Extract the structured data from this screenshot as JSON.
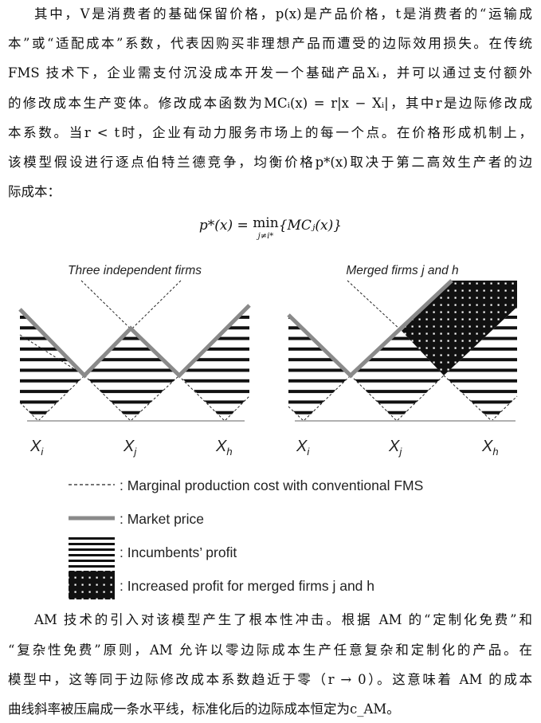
{
  "paragraph1": [
    "其中，V是消费者的基础保留价格，p(x)是产品价格，t是消费者的“运输成",
    "本”或“适配成本”系数，代表因购买非理想产品而遭受的边际效用损失。在传统",
    "FMS 技术下，企业需支付沉没成本开发一个基础产品Xᵢ，并可以通过支付额外",
    "的修改成本生产变体。修改成本函数为MCᵢ(x) = r|x − Xᵢ|，其中r是边际修改成",
    "本系数。当r < t时，企业有动力服务市场上的每一个点。在价格形成机制上，",
    "该模型假设进行逐点伯特兰德竞争，均衡价格p*(x)取决于第二高效生产者的边",
    "际成本："
  ],
  "formula": {
    "lhs": "p*(x) = ",
    "min": "min",
    "min_sub": "j≠i*",
    "rhs": "{MCⱼ(x)}"
  },
  "figure": {
    "left_title": "Three independent firms",
    "right_title": "Merged firms j and h",
    "firm_labels": [
      {
        "main": "X",
        "sub": "i"
      },
      {
        "main": "X",
        "sub": "j"
      },
      {
        "main": "X",
        "sub": "h"
      }
    ],
    "legend": [
      {
        "symbol": "dashed-line",
        "label": ": Marginal production cost with conventional FMS"
      },
      {
        "symbol": "gray-thick-line",
        "label": ": Market price"
      },
      {
        "symbol": "horizontal-stripes",
        "label": ": Incumbents’ profit"
      },
      {
        "symbol": "dotted-black",
        "label": ": Increased profit for merged firms j and h"
      }
    ],
    "colors": {
      "market_price": "#8a8a8a",
      "baseline": "#b0b0b0",
      "fill": "#111111"
    }
  },
  "paragraph2": [
    "AM 技术的引入对该模型产生了根本性冲击。根据 AM 的“定制化免费”和",
    "“复杂性免费”原则，AM 允许以零边际成本生产任意复杂和定制化的产品。在",
    "模型中，这等同于边际修改成本系数趋近于零（r → 0）。这意味着 AM 的成本",
    "曲线斜率被压扁成一条水平线，标准化后的边际成本恒定为c_AM。"
  ]
}
